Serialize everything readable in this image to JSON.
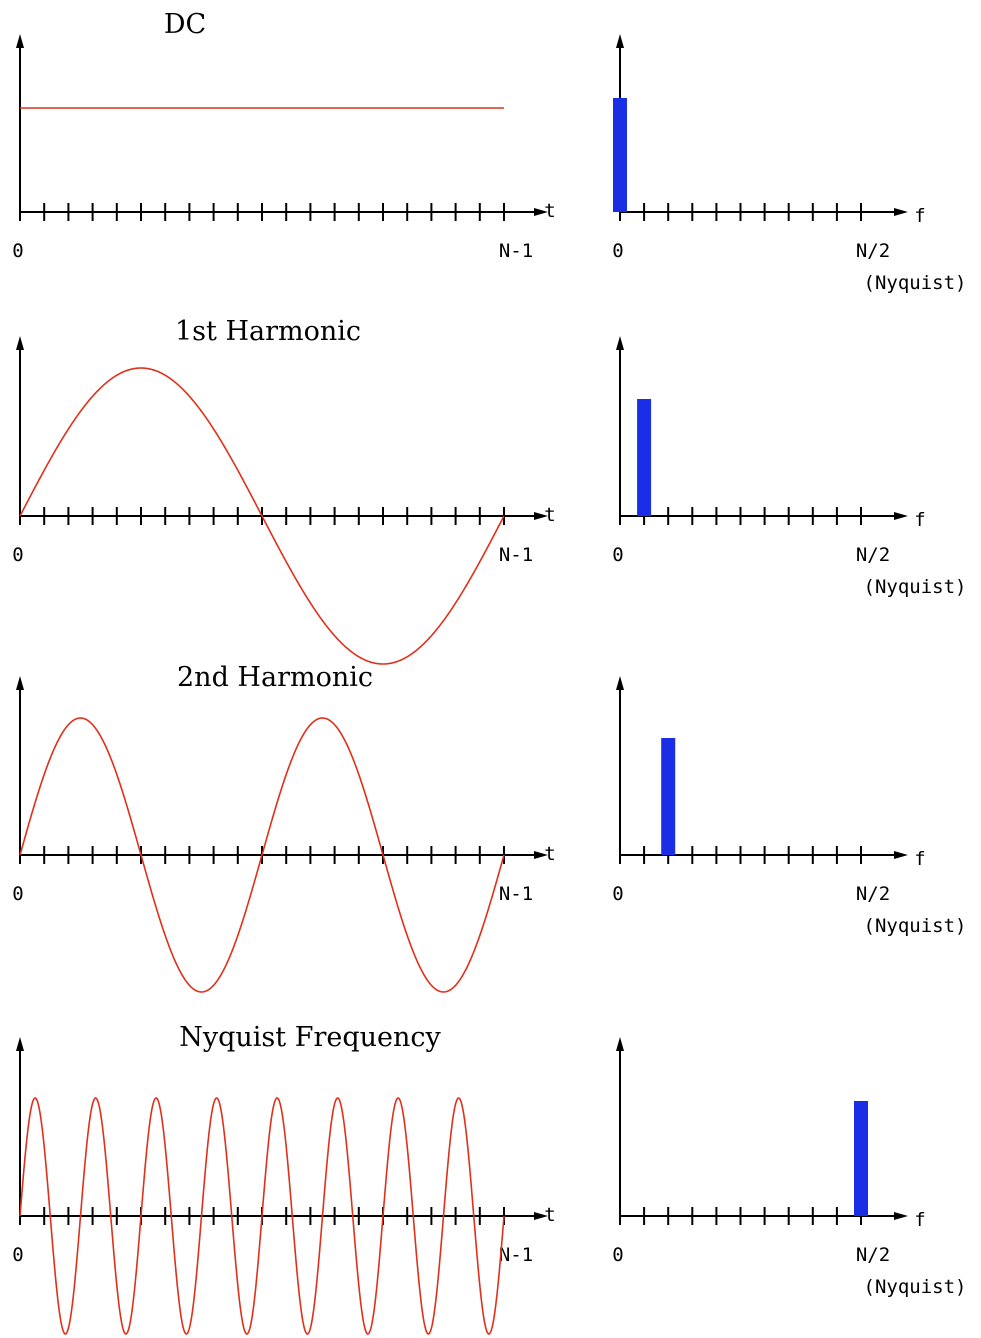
{
  "colors": {
    "signal": "#e0301a",
    "spectrum_bar": "#1a2ee6",
    "axis": "#000000"
  },
  "chart_data": [
    {
      "type": "line",
      "title": "DC",
      "harmonic": 0,
      "xlabel": "t",
      "x_tick_labels": [
        "0",
        "N-1"
      ],
      "ylim": [
        -1,
        1
      ],
      "amplitude": 0.8,
      "tick_count": 21
    },
    {
      "type": "bar",
      "xlabel": "f",
      "x_tick_labels": [
        "0",
        "N/2",
        "(Nyquist)"
      ],
      "bin": 0,
      "bin_count": 10,
      "value": 1.0,
      "ylim": [
        0,
        1.2
      ]
    },
    {
      "type": "line",
      "title": "1st Harmonic",
      "harmonic": 1,
      "xlabel": "t",
      "x_tick_labels": [
        "0",
        "N-1"
      ],
      "ylim": [
        -1,
        1
      ],
      "amplitude": 1,
      "tick_count": 21
    },
    {
      "type": "bar",
      "xlabel": "f",
      "x_tick_labels": [
        "0",
        "N/2",
        "(Nyquist)"
      ],
      "bin": 1,
      "bin_count": 10,
      "value": 1.0,
      "ylim": [
        0,
        1.2
      ]
    },
    {
      "type": "line",
      "title": "2nd Harmonic",
      "harmonic": 2,
      "xlabel": "t",
      "x_tick_labels": [
        "0",
        "N-1"
      ],
      "ylim": [
        -1,
        1
      ],
      "amplitude": 1,
      "tick_count": 21
    },
    {
      "type": "bar",
      "xlabel": "f",
      "x_tick_labels": [
        "0",
        "N/2",
        "(Nyquist)"
      ],
      "bin": 2,
      "bin_count": 10,
      "value": 1.0,
      "ylim": [
        0,
        1.2
      ]
    },
    {
      "type": "line",
      "title": "Nyquist Frequency",
      "harmonic": 8,
      "xlabel": "t",
      "x_tick_labels": [
        "0",
        "N-1"
      ],
      "ylim": [
        -1,
        1
      ],
      "amplitude": 1,
      "tick_count": 21
    },
    {
      "type": "bar",
      "xlabel": "f",
      "x_tick_labels": [
        "0",
        "N/2",
        "(Nyquist)"
      ],
      "bin": 10,
      "bin_count": 10,
      "value": 1.0,
      "ylim": [
        0,
        1.2
      ]
    }
  ]
}
